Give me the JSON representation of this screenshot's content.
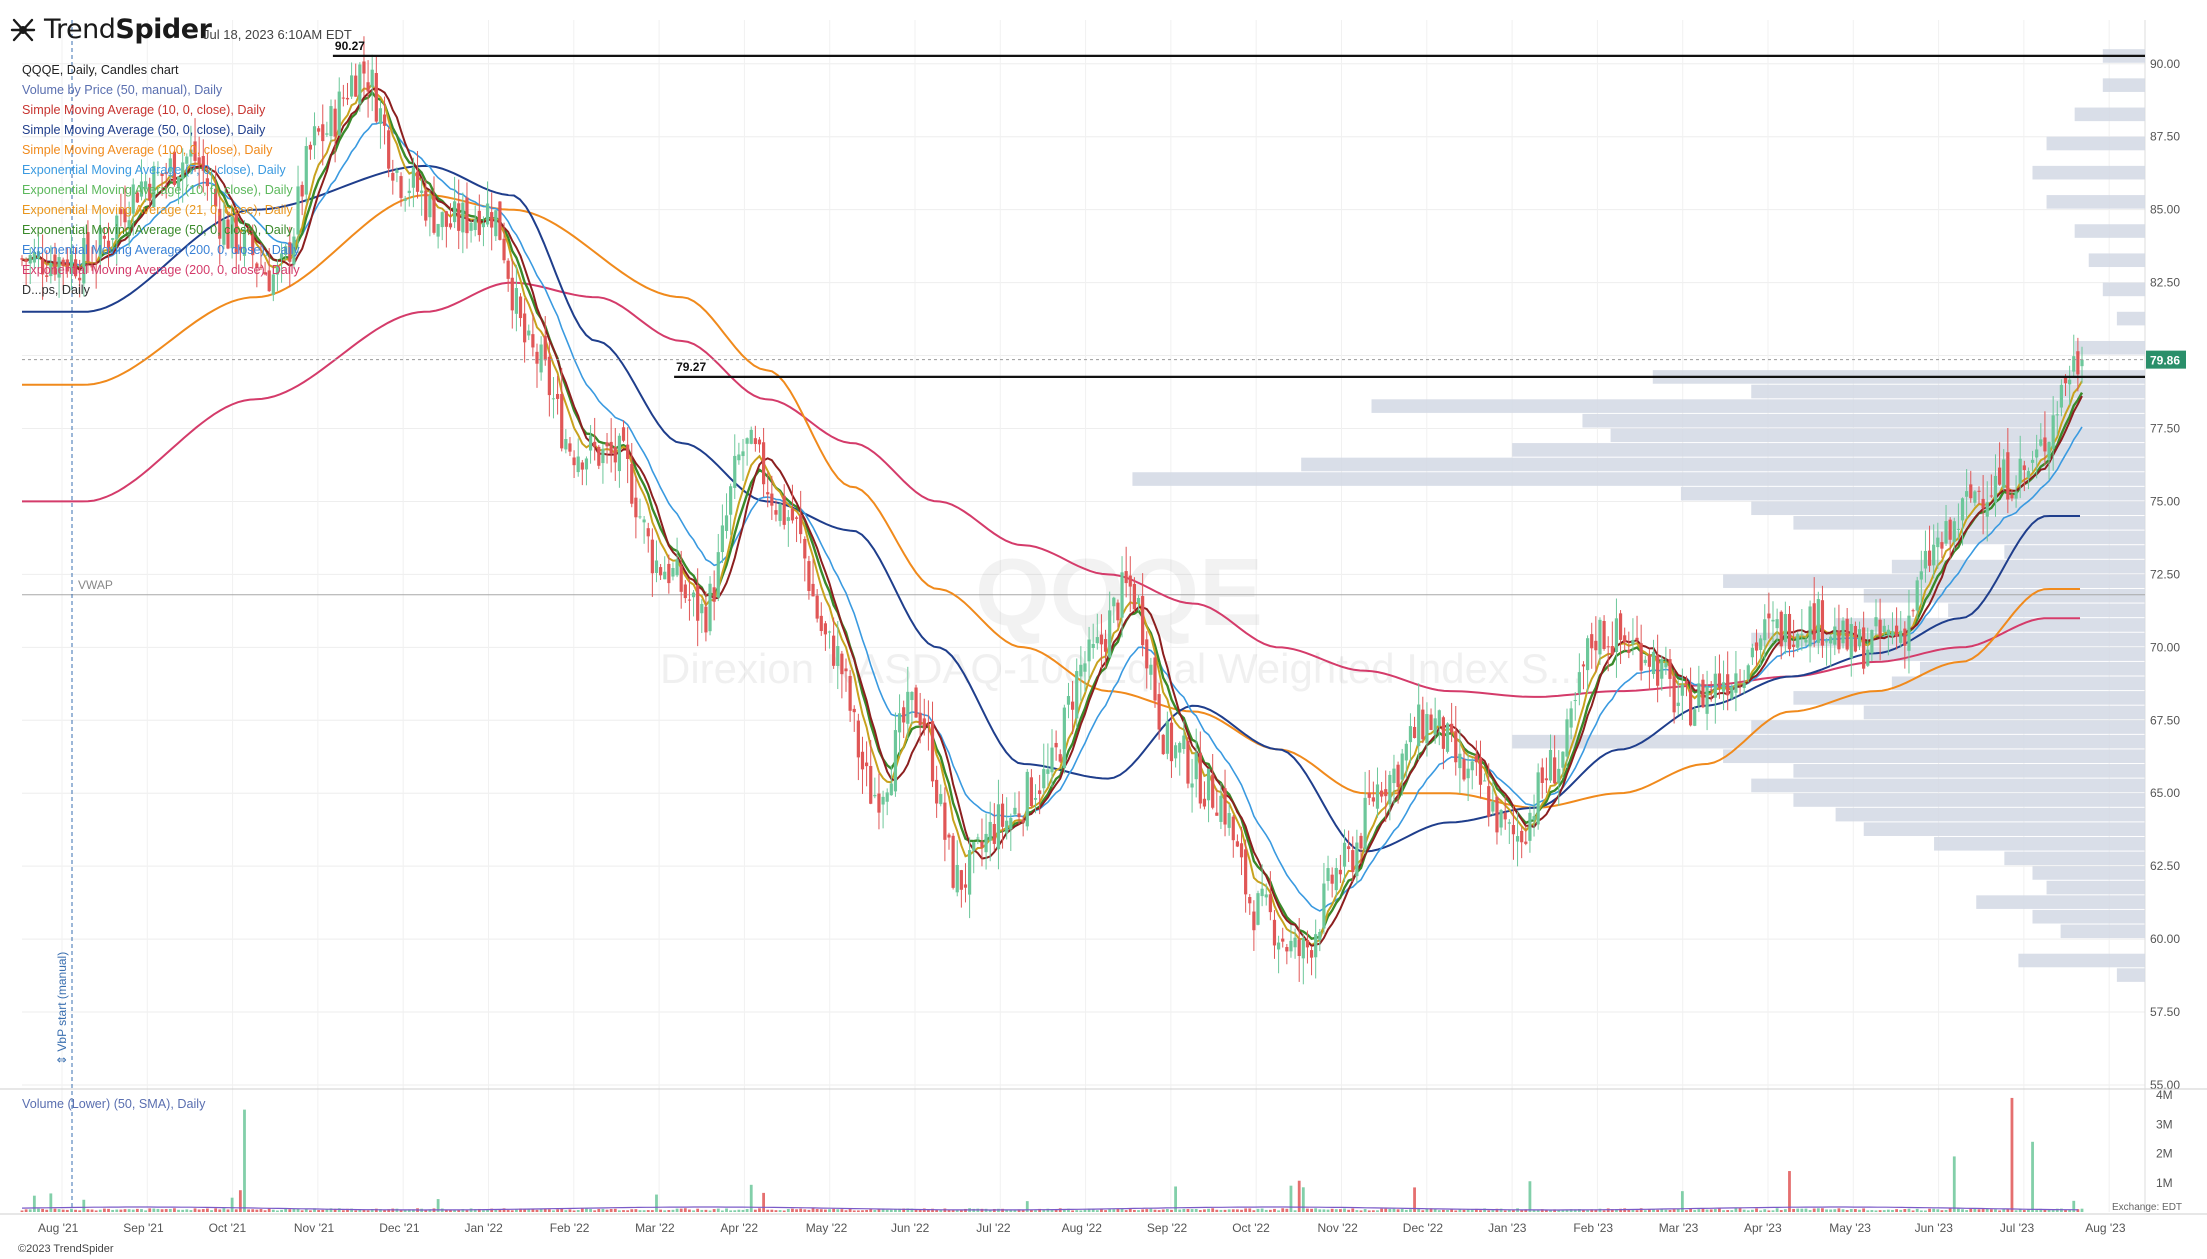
{
  "header": {
    "logo_trend": "Trend",
    "logo_spider": "Spider",
    "timestamp": "Jul 18, 2023 6:10AM EDT"
  },
  "legend": {
    "main": "QQQE, Daily, Candles chart",
    "items": [
      {
        "label": "Volume by Price (50, manual), Daily",
        "color": "#5a6fb0"
      },
      {
        "label": "Simple Moving Average (10, 0, close), Daily",
        "color": "#c7342f"
      },
      {
        "label": "Simple Moving Average (50, 0, close), Daily",
        "color": "#1f3e8c"
      },
      {
        "label": "Simple Moving Average (100, 0, close), Daily",
        "color": "#f08a1c"
      },
      {
        "label": "Exponential Moving Average (7, 0, close), Daily",
        "color": "#3a9ae0"
      },
      {
        "label": "Exponential Moving Average (10, 0, close), Daily",
        "color": "#5cb85c"
      },
      {
        "label": "Exponential Moving Average (21, 0, close), Daily",
        "color": "#e8961e"
      },
      {
        "label": "Exponential Moving Average (50, 0, close), Daily",
        "color": "#3a8a2a"
      },
      {
        "label": "Exponential Moving Average (200, 0, close), Daily",
        "color": "#3a82d6"
      },
      {
        "label": "Exponential Moving Average (200, 0, close), Daily",
        "color": "#d43b6a"
      },
      {
        "label": "D...ps, Daily",
        "color": "#333333"
      }
    ],
    "volume_label": "Volume (Lower) (50, SMA), Daily"
  },
  "watermark": {
    "ticker": "QQQE",
    "name": "Direxion NASDAQ-100 Equal Weighted Index S..."
  },
  "annotations": {
    "high_label": "90.27",
    "resist_label": "79.27",
    "vwap_label": "VWAP",
    "vbp_start": "⇕ VbP start (manual)",
    "last_price": "79.86",
    "exchange": "Exchange: EDT"
  },
  "footer": {
    "copyright": "©2023 TrendSpider"
  },
  "colors": {
    "up": "#6cc79a",
    "down": "#e05656",
    "sma10": "#8c1f1f",
    "sma50": "#1f3e8c",
    "sma100": "#f08a1c",
    "ema7": "#3a9ae0",
    "ema21": "#c8a21e",
    "ema50": "#3a8a2a",
    "ema200": "#d43b6a",
    "vbp": "#d2d8e4",
    "price_tag": "#2a8f6a"
  },
  "chart_data": {
    "type": "candlestick",
    "ticker": "QQQE",
    "interval": "Daily",
    "price_range": [
      55.0,
      91.5
    ],
    "y_ticks": [
      "55.00",
      "57.50",
      "60.00",
      "62.50",
      "65.00",
      "67.50",
      "70.00",
      "72.50",
      "75.00",
      "77.50",
      "80.00",
      "82.50",
      "85.00",
      "87.50",
      "90.00"
    ],
    "x_ticks": [
      "Aug '21",
      "Sep '21",
      "Oct '21",
      "Nov '21",
      "Dec '21",
      "Jan '22",
      "Feb '22",
      "Mar '22",
      "Apr '22",
      "May '22",
      "Jun '22",
      "Jul '22",
      "Aug '22",
      "Sep '22",
      "Oct '22",
      "Nov '22",
      "Dec '22",
      "Jan '23",
      "Feb '23",
      "Mar '23",
      "Apr '23",
      "May '23",
      "Jun '23",
      "Jul '23",
      "Aug '23"
    ],
    "volume_ticks": [
      "1M",
      "2M",
      "3M",
      "4M"
    ],
    "volume_range": [
      0,
      4
    ],
    "horizontal_lines": [
      {
        "label": "90.27",
        "price": 90.27,
        "from": "Nov '21"
      },
      {
        "label": "79.27",
        "price": 79.27,
        "from": "Mar '22"
      }
    ],
    "vwap": 71.8,
    "last_price": 79.86,
    "close_path": [
      [
        "Aug '21",
        83.3
      ],
      [
        "Sep '21",
        86.0
      ],
      [
        "Sep '21",
        86.8
      ],
      [
        "Oct '21",
        84.0
      ],
      [
        "Oct '21",
        82.7
      ],
      [
        "Nov '21",
        87.5
      ],
      [
        "Nov '21",
        89.8
      ],
      [
        "Dec '21",
        86.0
      ],
      [
        "Dec '21",
        84.5
      ],
      [
        "Jan '22",
        85.0
      ],
      [
        "Jan '22",
        80.0
      ],
      [
        "Feb '22",
        76.8
      ],
      [
        "Feb '22",
        76.5
      ],
      [
        "Mar '22",
        72.8
      ],
      [
        "Mar '22",
        71.2
      ],
      [
        "Apr '22",
        76.8
      ],
      [
        "Apr '22",
        74.5
      ],
      [
        "May '22",
        70.0
      ],
      [
        "May '22",
        65.0
      ],
      [
        "Jun '22",
        68.0
      ],
      [
        "Jun '22",
        62.0
      ],
      [
        "Jul '22",
        64.0
      ],
      [
        "Jul '22",
        65.5
      ],
      [
        "Aug '22",
        69.5
      ],
      [
        "Aug '22",
        72.0
      ],
      [
        "Sep '22",
        66.5
      ],
      [
        "Sep '22",
        65.0
      ],
      [
        "Oct '22",
        61.0
      ],
      [
        "Oct '22",
        59.5
      ],
      [
        "Nov '22",
        62.5
      ],
      [
        "Nov '22",
        65.5
      ],
      [
        "Dec '22",
        67.5
      ],
      [
        "Dec '22",
        65.5
      ],
      [
        "Jan '23",
        63.5
      ],
      [
        "Jan '23",
        66.0
      ],
      [
        "Feb '23",
        70.5
      ],
      [
        "Feb '23",
        70.0
      ],
      [
        "Mar '23",
        68.0
      ],
      [
        "Mar '23",
        69.0
      ],
      [
        "Apr '23",
        70.5
      ],
      [
        "Apr '23",
        71.0
      ],
      [
        "May '23",
        70.0
      ],
      [
        "May '23",
        70.5
      ],
      [
        "Jun '23",
        73.5
      ],
      [
        "Jun '23",
        75.5
      ],
      [
        "Jul '23",
        76.0
      ],
      [
        "Jul '23",
        79.86
      ]
    ],
    "sma50_path": [
      [
        "Aug '21",
        81.5
      ],
      [
        "Oct '21",
        85.0
      ],
      [
        "Dec '21",
        86.5
      ],
      [
        "Jan '22",
        85.5
      ],
      [
        "Feb '22",
        80.5
      ],
      [
        "Mar '22",
        77.0
      ],
      [
        "Apr '22",
        75.0
      ],
      [
        "May '22",
        74.0
      ],
      [
        "Jun '22",
        70.0
      ],
      [
        "Jul '22",
        66.0
      ],
      [
        "Aug '22",
        65.5
      ],
      [
        "Sep '22",
        68.0
      ],
      [
        "Oct '22",
        66.5
      ],
      [
        "Nov '22",
        63.0
      ],
      [
        "Dec '22",
        64.0
      ],
      [
        "Jan '23",
        64.5
      ],
      [
        "Feb '23",
        66.5
      ],
      [
        "Mar '23",
        68.0
      ],
      [
        "Apr '23",
        69.0
      ],
      [
        "May '23",
        69.8
      ],
      [
        "Jun '23",
        71.0
      ],
      [
        "Jul '23",
        74.5
      ]
    ],
    "sma100_path": [
      [
        "Aug '21",
        79.0
      ],
      [
        "Oct '21",
        82.0
      ],
      [
        "Dec '21",
        85.5
      ],
      [
        "Jan '22",
        85.0
      ],
      [
        "Mar '22",
        82.0
      ],
      [
        "Apr '22",
        79.5
      ],
      [
        "May '22",
        75.5
      ],
      [
        "Jun '22",
        72.0
      ],
      [
        "Jul '22",
        70.0
      ],
      [
        "Aug '22",
        68.5
      ],
      [
        "Sep '22",
        67.8
      ],
      [
        "Oct '22",
        66.5
      ],
      [
        "Nov '22",
        65.0
      ],
      [
        "Dec '22",
        65.0
      ],
      [
        "Jan '23",
        64.5
      ],
      [
        "Feb '23",
        65.0
      ],
      [
        "Mar '23",
        66.0
      ],
      [
        "Apr '23",
        67.8
      ],
      [
        "May '23",
        68.5
      ],
      [
        "Jun '23",
        69.5
      ],
      [
        "Jul '23",
        72.0
      ]
    ],
    "ema200_path": [
      [
        "Aug '21",
        75.0
      ],
      [
        "Oct '21",
        78.5
      ],
      [
        "Dec '21",
        81.5
      ],
      [
        "Jan '22",
        82.5
      ],
      [
        "Feb '22",
        82.0
      ],
      [
        "Mar '22",
        80.5
      ],
      [
        "Apr '22",
        78.5
      ],
      [
        "May '22",
        77.0
      ],
      [
        "Jun '22",
        75.0
      ],
      [
        "Jul '22",
        73.5
      ],
      [
        "Aug '22",
        72.5
      ],
      [
        "Sep '22",
        71.5
      ],
      [
        "Oct '22",
        70.0
      ],
      [
        "Nov '22",
        69.2
      ],
      [
        "Dec '22",
        68.5
      ],
      [
        "Jan '23",
        68.3
      ],
      [
        "Feb '23",
        68.5
      ],
      [
        "Mar '23",
        68.7
      ],
      [
        "Apr '23",
        69.0
      ],
      [
        "May '23",
        69.5
      ],
      [
        "Jun '23",
        70.0
      ],
      [
        "Jul '23",
        71.0
      ]
    ],
    "volume_by_price": [
      [
        90.0,
        0.03
      ],
      [
        89.0,
        0.03
      ],
      [
        88.0,
        0.05
      ],
      [
        87.0,
        0.07
      ],
      [
        86.0,
        0.08
      ],
      [
        85.0,
        0.07
      ],
      [
        84.0,
        0.05
      ],
      [
        83.0,
        0.04
      ],
      [
        82.0,
        0.03
      ],
      [
        81.0,
        0.02
      ],
      [
        80.0,
        0.05
      ],
      [
        79.0,
        0.35
      ],
      [
        78.5,
        0.28
      ],
      [
        78.0,
        0.55
      ],
      [
        77.5,
        0.4
      ],
      [
        77.0,
        0.38
      ],
      [
        76.5,
        0.45
      ],
      [
        76.0,
        0.6
      ],
      [
        75.5,
        0.72
      ],
      [
        75.0,
        0.33
      ],
      [
        74.5,
        0.28
      ],
      [
        74.0,
        0.25
      ],
      [
        73.5,
        0.15
      ],
      [
        73.0,
        0.1
      ],
      [
        72.5,
        0.18
      ],
      [
        72.0,
        0.3
      ],
      [
        71.5,
        0.2
      ],
      [
        71.0,
        0.14
      ],
      [
        70.5,
        0.22
      ],
      [
        70.0,
        0.28
      ],
      [
        69.5,
        0.2
      ],
      [
        69.0,
        0.16
      ],
      [
        68.5,
        0.18
      ],
      [
        68.0,
        0.25
      ],
      [
        67.5,
        0.2
      ],
      [
        67.0,
        0.28
      ],
      [
        66.5,
        0.45
      ],
      [
        66.0,
        0.3
      ],
      [
        65.5,
        0.25
      ],
      [
        65.0,
        0.28
      ],
      [
        64.5,
        0.25
      ],
      [
        64.0,
        0.22
      ],
      [
        63.5,
        0.2
      ],
      [
        63.0,
        0.15
      ],
      [
        62.5,
        0.1
      ],
      [
        62.0,
        0.08
      ],
      [
        61.5,
        0.07
      ],
      [
        61.0,
        0.12
      ],
      [
        60.5,
        0.08
      ],
      [
        60.0,
        0.06
      ],
      [
        59.0,
        0.09
      ],
      [
        58.5,
        0.02
      ]
    ]
  }
}
